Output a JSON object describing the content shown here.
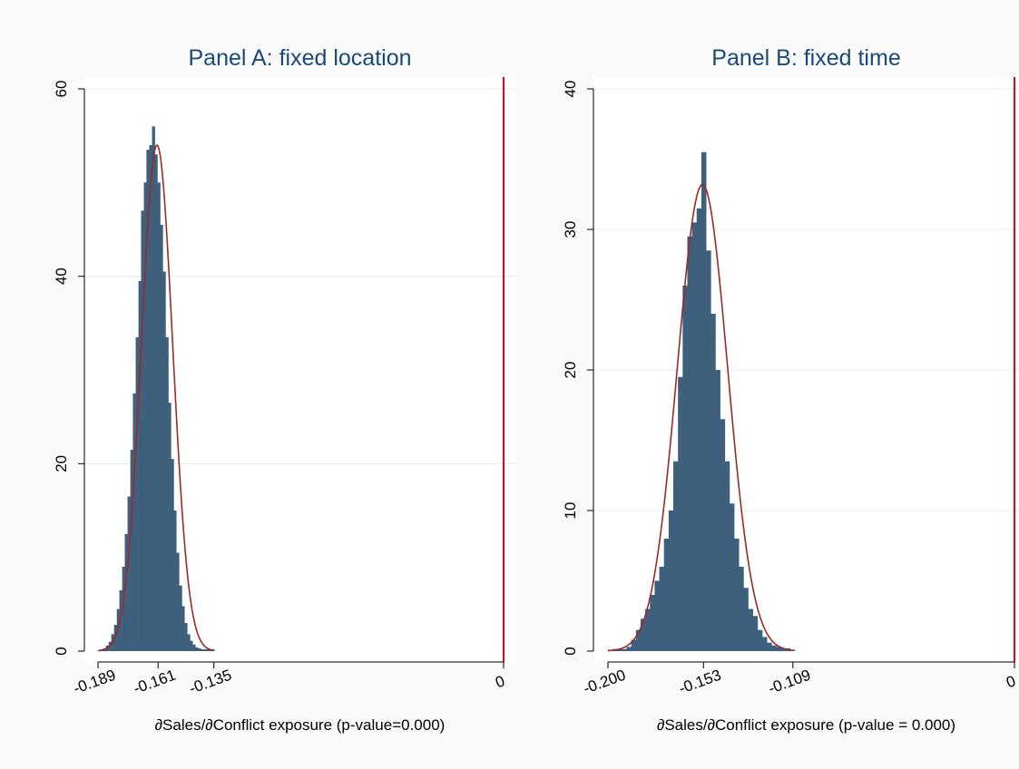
{
  "chart_data": [
    {
      "type": "bar",
      "title": "Panel A: fixed location",
      "xlabel": "∂Sales/∂Conflict exposure (p-value=0.000)",
      "ylabel": "",
      "xlim": [
        -0.189,
        0
      ],
      "ylim": [
        0,
        60
      ],
      "yticks": [
        0,
        20,
        40,
        60
      ],
      "xticks": [
        {
          "value": -0.189,
          "label": "-0.189"
        },
        {
          "value": -0.161,
          "label": "-0.161"
        },
        {
          "value": -0.135,
          "label": "-0.135"
        },
        {
          "value": 0,
          "label": "0"
        }
      ],
      "grid": true,
      "vline": {
        "x": 0,
        "color": "#e8001c"
      },
      "bar_color": "#3e607c",
      "density_color": "#9b2a2a",
      "bin_width": 0.00126,
      "histogram": {
        "x": [
          -0.1885,
          -0.1872,
          -0.1859,
          -0.1847,
          -0.1834,
          -0.1822,
          -0.1809,
          -0.1796,
          -0.1784,
          -0.1771,
          -0.1759,
          -0.1746,
          -0.1733,
          -0.1721,
          -0.1708,
          -0.1695,
          -0.1683,
          -0.167,
          -0.1658,
          -0.1645,
          -0.1632,
          -0.162,
          -0.1607,
          -0.1595,
          -0.1582,
          -0.1569,
          -0.1557,
          -0.1544,
          -0.1532,
          -0.1519,
          -0.1506,
          -0.1494,
          -0.1481,
          -0.1468,
          -0.1456,
          -0.1443,
          -0.1431,
          -0.1418,
          -0.1405,
          -0.1393,
          -0.138,
          -0.1368,
          -0.1355
        ],
        "y": [
          0.1,
          0.2,
          0.3,
          0.6,
          1.0,
          1.8,
          2.8,
          4.5,
          6.5,
          9.0,
          12.5,
          16.5,
          21.5,
          27.5,
          33.5,
          39.5,
          47.0,
          50.0,
          53.5,
          54.0,
          56.0,
          53.0,
          50.0,
          45.5,
          40.5,
          33.5,
          26.5,
          20.5,
          15.0,
          10.5,
          7.0,
          4.8,
          3.0,
          1.8,
          1.1,
          0.7,
          0.4,
          0.3,
          0.2,
          0.2,
          0.2,
          0.2,
          0.2
        ]
      },
      "density": {
        "mean": -0.1615,
        "sd": 0.0073,
        "peak": 54.0,
        "from": -0.1889,
        "to": -0.1355
      }
    },
    {
      "type": "bar",
      "title": "Panel B: fixed time",
      "xlabel": "∂Sales/∂Conflict exposure (p-value = 0.000)",
      "ylabel": "",
      "xlim": [
        -0.2,
        0
      ],
      "ylim": [
        0,
        40
      ],
      "yticks": [
        0,
        10,
        20,
        30,
        40
      ],
      "xticks": [
        {
          "value": -0.2,
          "label": "-0.200"
        },
        {
          "value": -0.153,
          "label": "-0.153"
        },
        {
          "value": -0.109,
          "label": "-0.109"
        },
        {
          "value": 0,
          "label": "0"
        }
      ],
      "grid": true,
      "vline": {
        "x": 0,
        "color": "#e8001c"
      },
      "bar_color": "#3e607c",
      "density_color": "#9b2a2a",
      "bin_width": 0.0023,
      "histogram": {
        "x": [
          -0.1989,
          -0.1966,
          -0.1943,
          -0.192,
          -0.1897,
          -0.1874,
          -0.1851,
          -0.1828,
          -0.1805,
          -0.1782,
          -0.1759,
          -0.1736,
          -0.1713,
          -0.169,
          -0.1667,
          -0.1644,
          -0.1621,
          -0.1598,
          -0.1575,
          -0.1552,
          -0.1529,
          -0.1506,
          -0.1483,
          -0.146,
          -0.1437,
          -0.1414,
          -0.1391,
          -0.1368,
          -0.1345,
          -0.1322,
          -0.1299,
          -0.1276,
          -0.1253,
          -0.123,
          -0.1207,
          -0.1184,
          -0.1161,
          -0.1138,
          -0.1115,
          -0.1092
        ],
        "y": [
          0.1,
          0.15,
          0.15,
          0.15,
          0.3,
          0.8,
          1.5,
          2.3,
          3.0,
          4.0,
          5.0,
          6.0,
          8.0,
          10.0,
          13.5,
          19.5,
          26.0,
          29.5,
          30.5,
          31.5,
          35.5,
          28.5,
          24.0,
          20.0,
          16.5,
          13.5,
          10.5,
          8.0,
          6.0,
          4.5,
          3.0,
          2.5,
          1.5,
          1.0,
          0.6,
          0.4,
          0.3,
          0.2,
          0.2,
          0.1
        ]
      },
      "density": {
        "mean": -0.1535,
        "sd": 0.0124,
        "peak": 33.2,
        "from": -0.2,
        "to": -0.109
      }
    }
  ]
}
